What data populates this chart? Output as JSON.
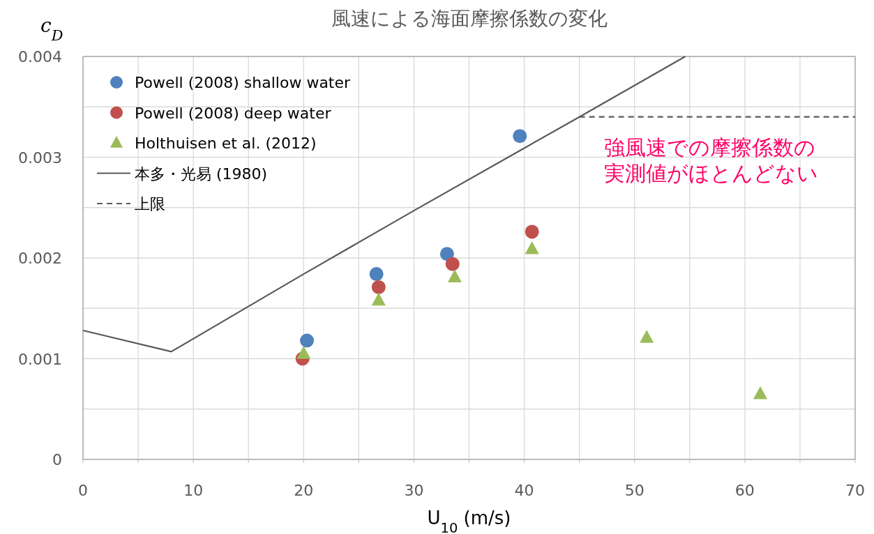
{
  "chart_data": {
    "type": "scatter",
    "title": "風速による海面摩擦係数の変化",
    "xlabel": "U$_{10}$ (m/s)",
    "ylabel": "c$_{D}$",
    "xlim": [
      0,
      70
    ],
    "ylim": [
      0,
      0.004
    ],
    "xticks": [
      0,
      {
        "value": 5,
        "label": null
      },
      10,
      {
        "value": 15,
        "label": null
      },
      20,
      {
        "value": 25,
        "label": null
      },
      30,
      {
        "value": 35,
        "label": null
      },
      40,
      {
        "value": 45,
        "label": null
      },
      50,
      {
        "value": 55,
        "label": null
      },
      60,
      {
        "value": 65,
        "label": null
      },
      70
    ],
    "yticks": [
      0,
      {
        "value": 0.0005,
        "label": null
      },
      0.001,
      {
        "value": 0.0015,
        "label": null
      },
      0.002,
      {
        "value": 0.0025,
        "label": null
      },
      0.003,
      {
        "value": 0.0035,
        "label": null
      },
      0.004
    ],
    "grid": true,
    "legend": "top left",
    "series": [
      {
        "name": "Powell (2008) shallow water",
        "marker": "circle",
        "color": "#4f81bd",
        "x": [
          20.3,
          26.6,
          33.0,
          39.6
        ],
        "values": [
          0.00118,
          0.00184,
          0.00204,
          0.00321
        ]
      },
      {
        "name": "Powell (2008) deep water",
        "marker": "circle",
        "color": "#c0504d",
        "x": [
          19.9,
          26.8,
          33.5,
          40.7
        ],
        "values": [
          0.001,
          0.00171,
          0.00194,
          0.00226
        ]
      },
      {
        "name": "Holthuisen et al. (2012)",
        "marker": "triangle",
        "color": "#9bbb59",
        "x": [
          20.0,
          26.8,
          33.7,
          40.7,
          51.1,
          61.4
        ],
        "values": [
          0.00105,
          0.00158,
          0.00181,
          0.00209,
          0.00121,
          0.00065
        ]
      },
      {
        "name": "本多・光易 (1980)",
        "type": "line",
        "marker": "none",
        "line_style": "solid",
        "color": "#595959",
        "x": [
          0,
          8,
          20,
          30,
          40,
          45,
          54.6
        ],
        "values": [
          0.00128,
          0.00107,
          0.00184,
          0.00247,
          0.00309,
          0.0034,
          0.004
        ]
      },
      {
        "name": "上限",
        "type": "line",
        "marker": "none",
        "line_style": "dashed",
        "color": "#595959",
        "x": [
          45,
          70
        ],
        "values": [
          0.0034,
          0.0034
        ]
      }
    ],
    "annotations": [
      "強風速での摩擦係数の",
      "実測値がほとんどない"
    ]
  }
}
